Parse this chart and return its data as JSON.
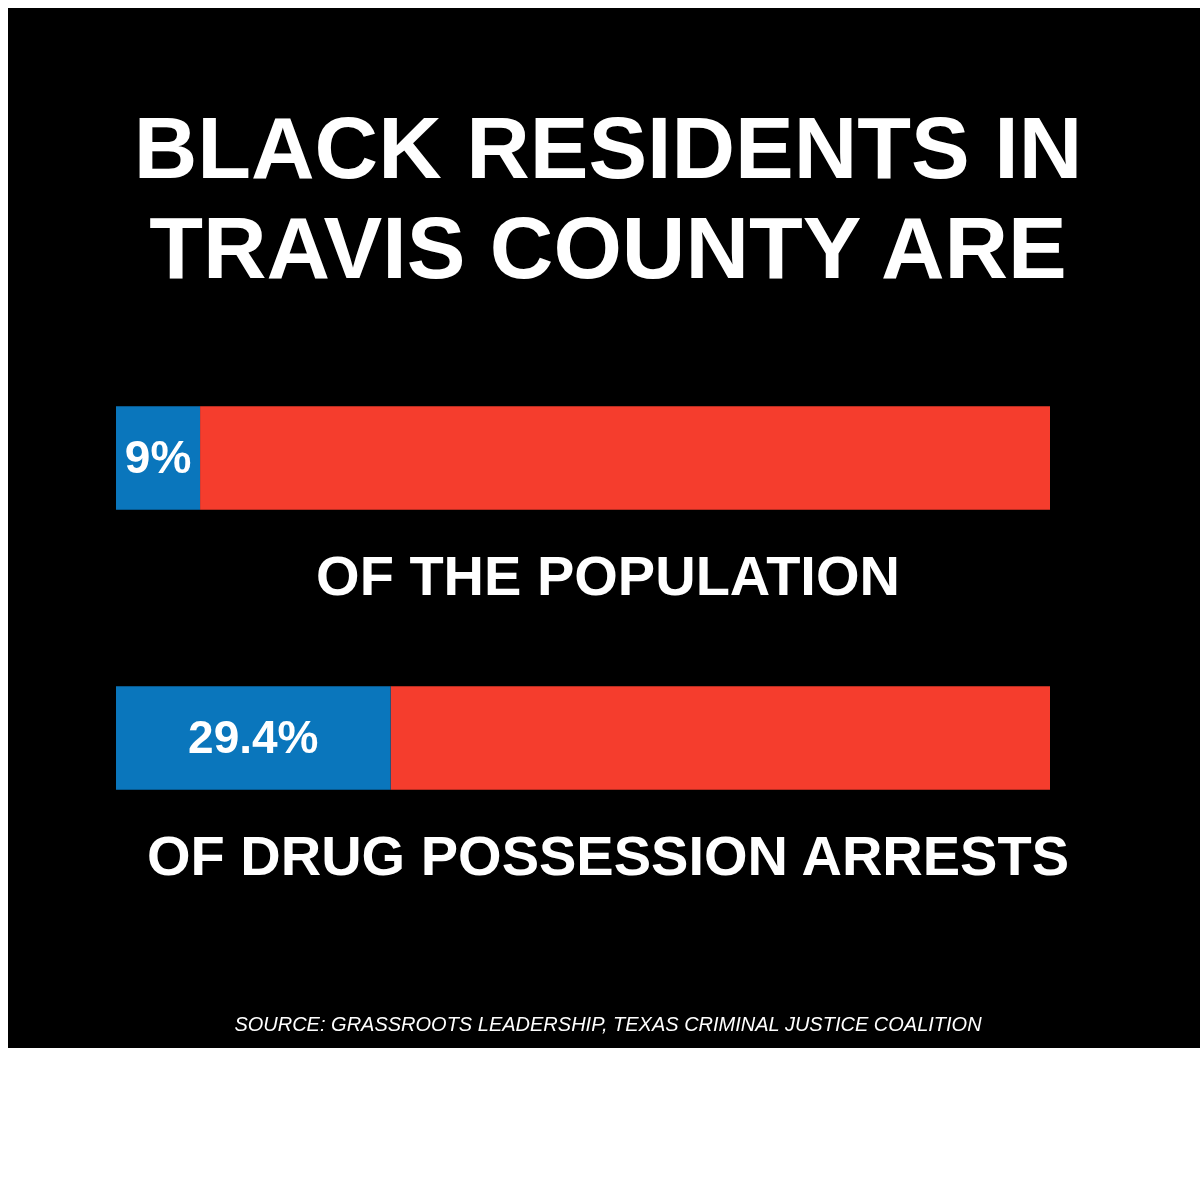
{
  "chart_data": {
    "type": "bar",
    "title": "BLACK RESIDENTS IN TRAVIS COUNTY ARE",
    "orientation": "horizontal",
    "stacked": true,
    "categories": [
      "OF THE POPULATION",
      "OF DRUG POSSESSION ARRESTS"
    ],
    "series": [
      {
        "color": "#0a76bc",
        "values": [
          9,
          29.4
        ],
        "value_labels": [
          "9%",
          "29.4%"
        ]
      },
      {
        "color": "#f53d2d",
        "values": [
          91,
          70.6
        ]
      }
    ],
    "xlim": [
      0,
      100
    ],
    "tick_labels": false,
    "annotations": [
      "SOURCE: GRASSROOTS LEADERSHIP, TEXAS CRIMINAL JUSTICE COALITION"
    ]
  }
}
